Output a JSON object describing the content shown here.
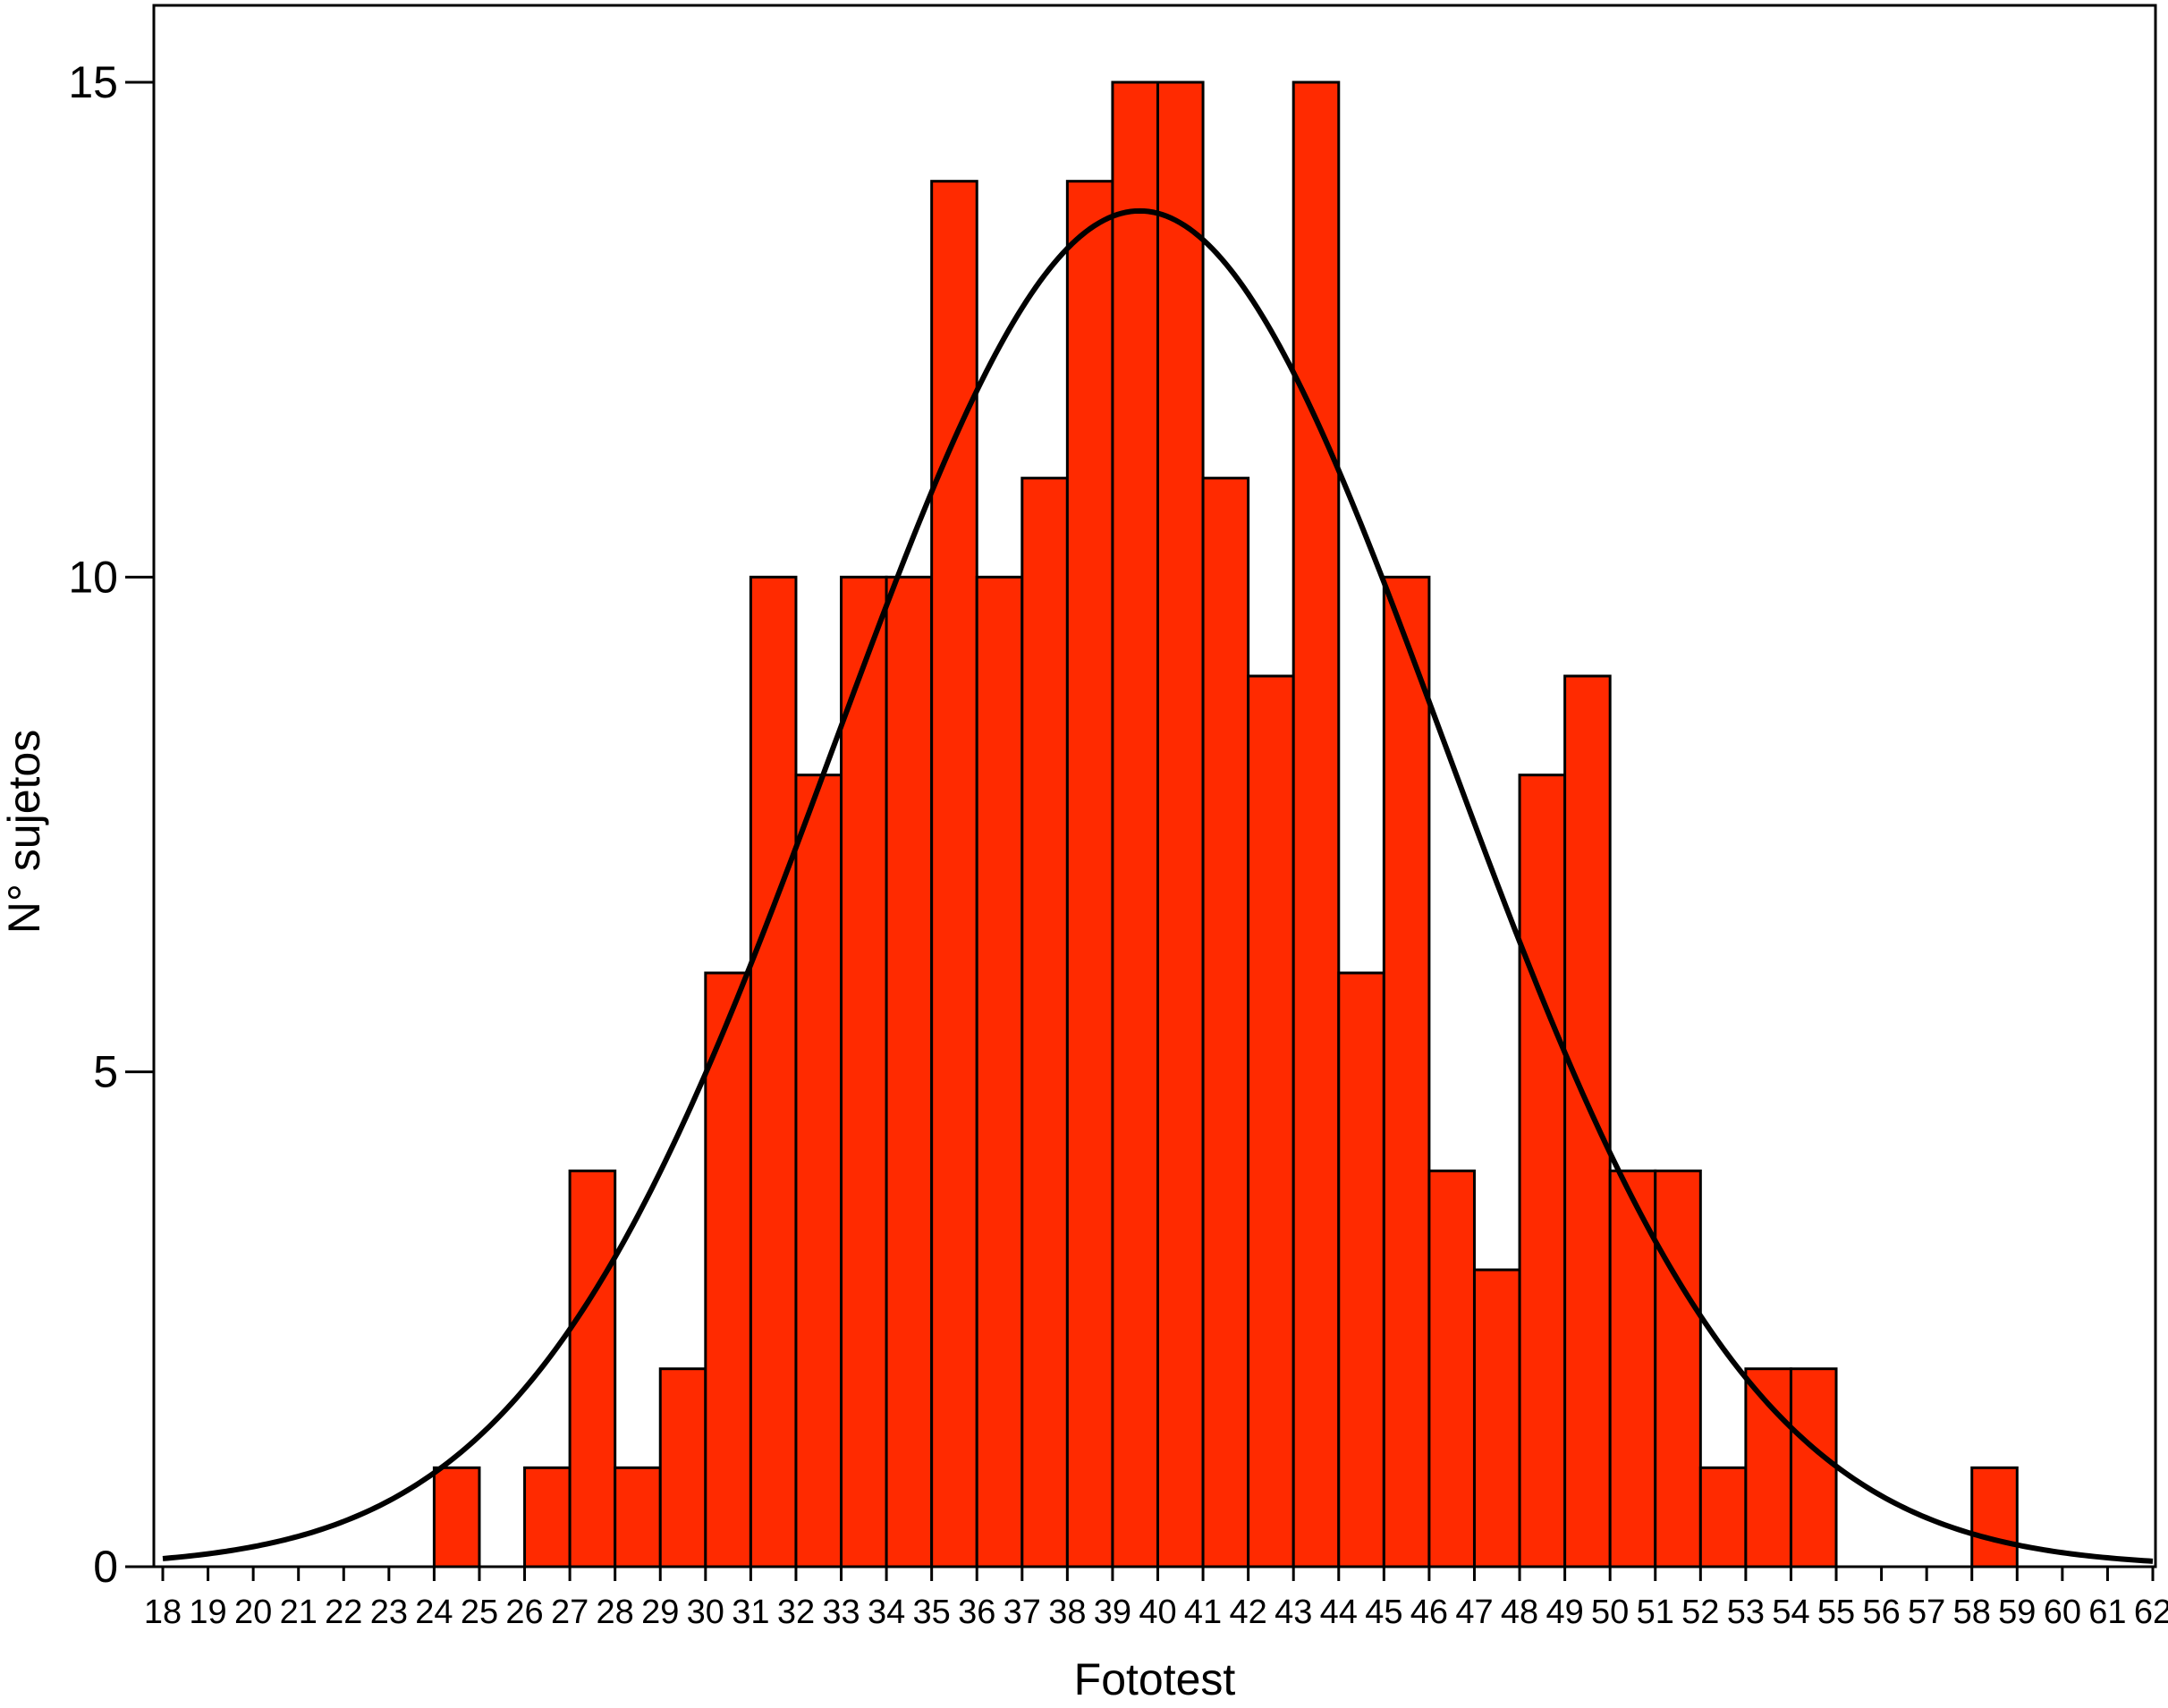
{
  "chart_data": {
    "type": "bar",
    "title": "",
    "xlabel": "Fototest",
    "ylabel": "N° sujetos",
    "x_ticks": [
      "18",
      "19",
      "20",
      "21",
      "22",
      "23",
      "24",
      "25",
      "26",
      "27",
      "28",
      "29",
      "30",
      "31",
      "32",
      "33",
      "34",
      "35",
      "36",
      "37",
      "38",
      "39",
      "40",
      "41",
      "42",
      "43",
      "44",
      "45",
      "46",
      "47",
      "48",
      "49",
      "50",
      "51",
      "52",
      "53",
      "54",
      "55",
      "56",
      "57",
      "58",
      "59",
      "60",
      "61",
      "62"
    ],
    "y_ticks": [
      "0",
      "5",
      "10",
      "15"
    ],
    "ylim": [
      0,
      15.8
    ],
    "grid": false,
    "bars": [
      {
        "x": 24.5,
        "value": 1
      },
      {
        "x": 26.5,
        "value": 1
      },
      {
        "x": 27.5,
        "value": 4
      },
      {
        "x": 28.5,
        "value": 1
      },
      {
        "x": 29.5,
        "value": 2
      },
      {
        "x": 30.5,
        "value": 6
      },
      {
        "x": 31.5,
        "value": 10
      },
      {
        "x": 32.5,
        "value": 8
      },
      {
        "x": 33.5,
        "value": 10
      },
      {
        "x": 34.5,
        "value": 10
      },
      {
        "x": 35.5,
        "value": 14
      },
      {
        "x": 36.5,
        "value": 10
      },
      {
        "x": 37.5,
        "value": 11
      },
      {
        "x": 38.5,
        "value": 14
      },
      {
        "x": 39.5,
        "value": 15
      },
      {
        "x": 40.5,
        "value": 15
      },
      {
        "x": 41.5,
        "value": 11
      },
      {
        "x": 42.5,
        "value": 9
      },
      {
        "x": 43.5,
        "value": 15
      },
      {
        "x": 44.5,
        "value": 6
      },
      {
        "x": 45.5,
        "value": 10
      },
      {
        "x": 46.5,
        "value": 4
      },
      {
        "x": 47.5,
        "value": 3
      },
      {
        "x": 48.5,
        "value": 8
      },
      {
        "x": 49.5,
        "value": 9
      },
      {
        "x": 50.5,
        "value": 4
      },
      {
        "x": 51.5,
        "value": 4
      },
      {
        "x": 52.5,
        "value": 1
      },
      {
        "x": 53.5,
        "value": 2
      },
      {
        "x": 54.5,
        "value": 2
      },
      {
        "x": 58.5,
        "value": 1
      }
    ],
    "normal_curve": {
      "mean": 39.6,
      "sd": 6.75,
      "peak": 13.7
    },
    "colors": {
      "bar_fill": "#ff2a00",
      "bar_stroke": "#000000",
      "curve": "#000000",
      "axis": "#000000"
    }
  }
}
